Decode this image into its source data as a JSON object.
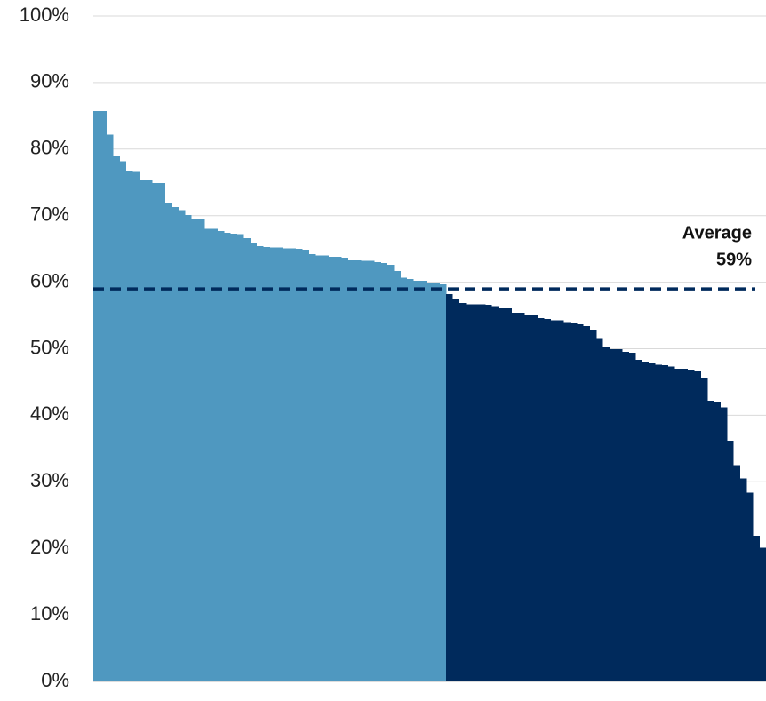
{
  "chart_data": {
    "type": "bar",
    "ylim": [
      0,
      100
    ],
    "yticks": [
      {
        "value": 0,
        "label": "0%"
      },
      {
        "value": 10,
        "label": "10%"
      },
      {
        "value": 20,
        "label": "20%"
      },
      {
        "value": 30,
        "label": "30%"
      },
      {
        "value": 40,
        "label": "40%"
      },
      {
        "value": 50,
        "label": "50%"
      },
      {
        "value": 60,
        "label": "60%"
      },
      {
        "value": 70,
        "label": "70%"
      },
      {
        "value": 80,
        "label": "80%"
      },
      {
        "value": 90,
        "label": "90%"
      },
      {
        "value": 100,
        "label": "100%"
      }
    ],
    "grid": true,
    "series": [
      {
        "color": "#4f98c0",
        "values": [
          85.7,
          85.7,
          82.2,
          78.9,
          78.2,
          76.8,
          76.6,
          75.3,
          75.3,
          74.9,
          74.9,
          71.8,
          71.3,
          70.8,
          70.1,
          69.4,
          69.4,
          68.0,
          68.0,
          67.7,
          67.4,
          67.3,
          67.2,
          66.6,
          65.8,
          65.4,
          65.3,
          65.2,
          65.2,
          65.1,
          65.1,
          65.0,
          64.9,
          64.2,
          64.0,
          64.0,
          63.8,
          63.8,
          63.7,
          63.3,
          63.3,
          63.2,
          63.2,
          63.0,
          62.9,
          62.6,
          61.7,
          60.7,
          60.5,
          60.2,
          60.2,
          59.8,
          59.8,
          59.7
        ]
      },
      {
        "color": "#002a5c",
        "values": [
          58.2,
          57.5,
          56.9,
          56.7,
          56.7,
          56.7,
          56.6,
          56.4,
          56.1,
          56.1,
          55.4,
          55.4,
          55.0,
          55.0,
          54.6,
          54.5,
          54.3,
          54.3,
          54.0,
          53.8,
          53.7,
          53.4,
          52.9,
          51.6,
          50.2,
          49.9,
          49.9,
          49.5,
          49.4,
          48.3,
          47.9,
          47.8,
          47.6,
          47.5,
          47.3,
          47.0,
          47.0,
          46.8,
          46.6,
          45.6,
          42.2,
          42.0,
          41.2,
          36.2,
          32.5,
          30.5,
          28.4,
          21.9,
          20.1
        ]
      }
    ],
    "average": {
      "text": "Average",
      "value": 59,
      "value_label": "59%",
      "color": "#002a5c"
    }
  }
}
